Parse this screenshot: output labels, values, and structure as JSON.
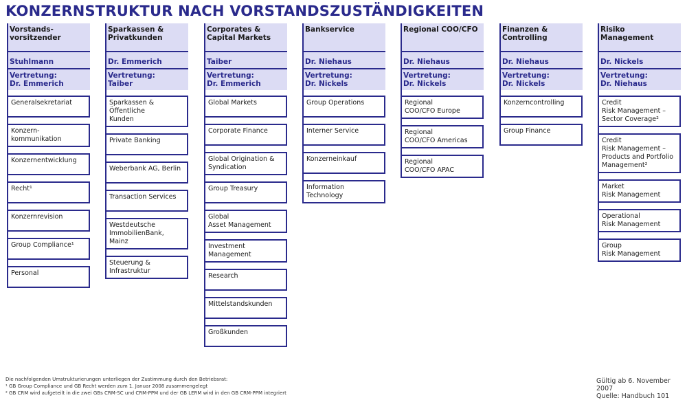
{
  "title": "KONZERNSTRUKTUR NACH VORSTANDSZUSTÄNDIGKEITEN",
  "columns": [
    {
      "header": "Vorstands-\nvorsitzender",
      "name": "Stuhlmann",
      "deputy": "Vertretung:\nDr. Emmerich",
      "units": [
        "Generalsekretariat",
        "Konzern-\nkommunikation",
        "Konzernentwicklung",
        "Recht¹",
        "Konzernrevision",
        "Group Compliance¹",
        "Personal"
      ]
    },
    {
      "header": "Sparkassen &\nPrivatkunden",
      "name": "Dr. Emmerich",
      "deputy": "Vertretung:\nTaiber",
      "units": [
        "Sparkassen & Öffentliche\nKunden",
        "Private Banking",
        "Weberbank AG, Berlin",
        "Transaction Services",
        "Westdeutsche\nImmobilienBank, Mainz",
        "Steuerung & Infrastruktur"
      ]
    },
    {
      "header": "Corporates &\nCapital Markets",
      "name": "Taiber",
      "deputy": "Vertretung:\nDr. Emmerich",
      "units": [
        "Global Markets",
        "Corporate Finance",
        "Global Origination &\nSyndication",
        "Group Treasury",
        "Global\nAsset Management",
        "Investment\nManagement",
        "Research",
        "Mittelstandskunden",
        "Großkunden"
      ]
    },
    {
      "header": "Bankservice",
      "name": "Dr. Niehaus",
      "deputy": "Vertretung:\nDr. Nickels",
      "units": [
        "Group Operations",
        "Interner Service",
        "Konzerneinkauf",
        "Information Technology"
      ]
    },
    {
      "header": "Regional COO/CFO",
      "name": "Dr. Niehaus",
      "deputy": "Vertretung:\nDr. Nickels",
      "units": [
        "Regional\nCOO/CFO Europe",
        "Regional\nCOO/CFO Americas",
        "Regional\nCOO/CFO APAC"
      ]
    },
    {
      "header": "Finanzen &\nControlling",
      "name": "Dr. Niehaus",
      "deputy": "Vertretung:\nDr. Nickels",
      "units": [
        "Konzerncontrolling",
        "Group Finance"
      ]
    },
    {
      "header": "Risiko\nManagement",
      "name": "Dr. Nickels",
      "deputy": "Vertretung:\nDr. Niehaus",
      "units": [
        "Credit\nRisk Management –\nSector Coverage²",
        "Credit\nRisk Management –\nProducts and Portfolio\nManagement²",
        "Market\nRisk Management",
        "Operational\nRisk Management",
        "Group\nRisk Management"
      ]
    }
  ],
  "footnotes": [
    "Die nachfolgenden Umstrukturierungen unterliegen der Zustimmung durch den Betriebsrat:",
    "¹ GB Group Compliance und GB Recht werden zum 1. Januar 2008 zusammengelegt",
    "² GB CRM wird aufgeteilt in die zwei GBs CRM-SC und CRM-PPM und der GB LERM wird in den GB CRM-PPM integriert"
  ],
  "validity": "Gültig ab 6. November 2007",
  "source": "Quelle: Handbuch 101",
  "colors": {
    "accent": "#2a2a8c",
    "header_bg": "#dcdcf4"
  }
}
